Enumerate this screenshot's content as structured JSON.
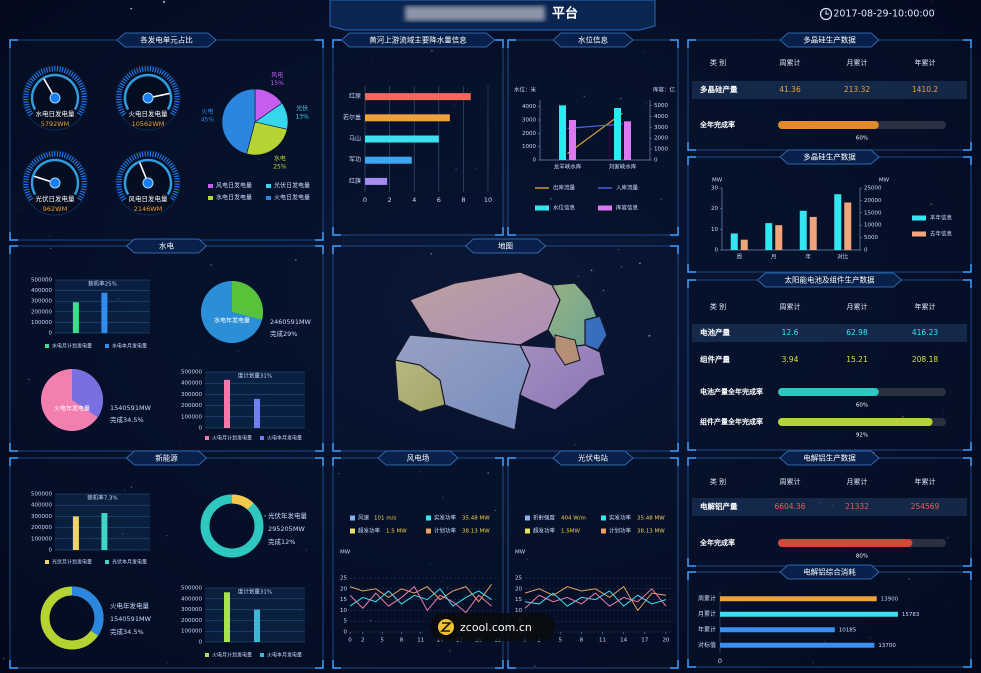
{
  "header": {
    "title": "平台",
    "datetime": "2017-08-29-10:00:00"
  },
  "watermark": "zcool.com.cn",
  "panels": [
    {
      "title": "各发电单元占比",
      "charts": [
        {
          "type": "gauge",
          "label": "水电日发电量",
          "value": "5792WM"
        },
        {
          "type": "gauge",
          "label": "火电日发电量",
          "value": "10562WM"
        },
        {
          "type": "gauge",
          "label": "光伏日发电量",
          "value": "962WM"
        },
        {
          "type": "gauge",
          "label": "风电日发电量",
          "value": "2146WM"
        },
        {
          "type": "pie",
          "labels": [
            "风电",
            "光伏",
            "水电",
            "火电"
          ],
          "values": [
            15,
            13,
            25,
            45
          ],
          "value_labels": [
            "15%",
            "13%",
            "25%",
            "45%"
          ],
          "colors": [
            "#c65cf0",
            "#36d6ee",
            "#b5d434",
            "#2b86e0"
          ],
          "legend": [
            "风电日发电量",
            "光伏日发电量",
            "水电日发电量",
            "火电日发电量"
          ]
        }
      ]
    },
    {
      "title": "水电",
      "charts": [
        {
          "type": "vbar",
          "title": "装机率25%",
          "series": [
            {
              "name": "水电月计划发电量",
              "color": "#3de08a",
              "values": [
                290000
              ]
            },
            {
              "name": "水电本月发电量",
              "color": "#2f8ff0",
              "values": [
                380000
              ]
            }
          ],
          "ylim": [
            0,
            500000
          ],
          "yticks": [
            0,
            100000,
            200000,
            300000,
            400000,
            500000
          ]
        },
        {
          "type": "pie",
          "center_label": "水电年发电量",
          "total": "2460591MW",
          "done_label": "完成29%",
          "done": 29,
          "colors": [
            "#2b8fd8",
            "#58c23a"
          ]
        },
        {
          "type": "pie",
          "center_label": "火电年发电量",
          "total": "1540591MW",
          "done_label": "完成34.5%",
          "done": 34.5,
          "colors": [
            "#f27fb0",
            "#7a6fe0"
          ]
        },
        {
          "type": "vbar",
          "title": "度计划量31%",
          "series": [
            {
              "name": "火电月计划发电量",
              "color": "#f07aa8",
              "values": [
                430000
              ]
            },
            {
              "name": "火电本月发电量",
              "color": "#6f7ff0",
              "values": [
                260000
              ]
            }
          ],
          "ylim": [
            0,
            500000
          ],
          "yticks": [
            0,
            100000,
            200000,
            300000,
            400000,
            500000
          ]
        }
      ]
    },
    {
      "title": "新能源",
      "charts": [
        {
          "type": "vbar",
          "title": "装机率7.3%",
          "series": [
            {
              "name": "光伏月计划发电量",
              "color": "#f2d36b",
              "values": [
                300000
              ]
            },
            {
              "name": "光伏本月发电量",
              "color": "#3fd6c6",
              "values": [
                330000
              ]
            }
          ],
          "ylim": [
            0,
            500000
          ],
          "yticks": [
            0,
            100000,
            200000,
            300000,
            400000,
            500000
          ]
        },
        {
          "type": "donut",
          "center_label": "光伏年发电量",
          "total": "295205MW",
          "done_label": "完成12%",
          "done": 12,
          "colors": [
            "#2fc8c0",
            "#f2c94c"
          ]
        },
        {
          "type": "donut",
          "center_label": "火电年发电量",
          "total": "1540591MW",
          "done_label": "完成34.5%",
          "done": 34.5,
          "colors": [
            "#b5d434",
            "#2b86e0"
          ]
        },
        {
          "type": "vbar",
          "title": "度计划量31%",
          "series": [
            {
              "name": "火电月计划发电量",
              "color": "#a8e05a",
              "values": [
                460000
              ]
            },
            {
              "name": "火电本月发电量",
              "color": "#3fb6d6",
              "values": [
                300000
              ]
            }
          ],
          "ylim": [
            0,
            500000
          ],
          "yticks": [
            0,
            100000,
            200000,
            300000,
            400000,
            500000
          ]
        }
      ]
    },
    {
      "title": "黄河上游流域主要降水量信息",
      "charts": [
        {
          "type": "hbar",
          "categories": [
            "红原",
            "若尔盖",
            "马山",
            "军功",
            "红旗"
          ],
          "values": [
            8.6,
            6.9,
            6.0,
            3.8,
            1.8
          ],
          "colors": [
            "#f06a5a",
            "#f0a03c",
            "#3de0f0",
            "#3aa8f0",
            "#a78bf0"
          ],
          "xlim": [
            0,
            10
          ],
          "xticks": [
            0,
            2,
            4,
            6,
            8,
            10
          ]
        }
      ]
    },
    {
      "title": "水位信息",
      "charts": [
        {
          "type": "combo",
          "ylabel": "水位：米",
          "y2label": "库容：亿",
          "categories": [
            "龙羊峡水库",
            "刘家峡水库"
          ],
          "ylim": [
            0,
            4500
          ],
          "yticks": [
            0,
            1000,
            2000,
            3000,
            4000
          ],
          "y2lim": [
            0,
            5500
          ],
          "y2ticks": [
            0,
            1000,
            2000,
            3000,
            4000,
            5000
          ],
          "series": [
            {
              "name": "出库流量",
              "color": "#d9a040",
              "type": "line",
              "axis": "y2",
              "values": [
                600,
                4300
              ]
            },
            {
              "name": "入库流量",
              "color": "#4f63e8",
              "type": "line",
              "axis": "y2",
              "values": [
                2900,
                3300
              ]
            },
            {
              "name": "水位信息",
              "color": "#34e6f2",
              "values": [
                4100,
                3900
              ]
            },
            {
              "name": "库容信息",
              "color": "#dc78f2",
              "values": [
                3000,
                2900
              ]
            }
          ]
        }
      ]
    },
    {
      "title": "地图"
    },
    {
      "title": "风电场",
      "charts": [
        {
          "type": "line",
          "stats": [
            {
              "label": "风速",
              "value": "101 m/s",
              "color": "#7fb2ff"
            },
            {
              "label": "实发功率",
              "value": "35.48 MW",
              "color": "#34e6f2"
            },
            {
              "label": "超发功率",
              "value": "1.5 MW",
              "color": "#e8e060"
            },
            {
              "label": "计划功率",
              "value": "38.13 MW",
              "color": "#f0a060"
            }
          ],
          "yunit": "MW",
          "x": [
            0,
            2,
            4,
            6,
            8,
            10,
            12,
            14,
            16,
            18,
            20,
            22
          ],
          "xlim": [
            0,
            23
          ],
          "xticks": [
            0,
            2,
            5,
            8,
            11,
            14,
            17,
            20,
            23
          ],
          "ylim": [
            0,
            25
          ],
          "yticks": [
            0,
            5,
            10,
            15,
            20,
            25
          ],
          "series": [
            {
              "color": "#e8a060",
              "values": [
                21,
                19,
                20,
                16,
                20,
                18,
                21,
                15,
                19,
                21,
                14,
                22
              ]
            },
            {
              "color": "#3de0f0",
              "values": [
                12,
                16,
                14,
                19,
                13,
                17,
                15,
                20,
                12,
                16,
                19,
                15
              ]
            },
            {
              "color": "#f07aa8",
              "values": [
                17,
                11,
                18,
                12,
                16,
                21,
                10,
                17,
                14,
                9,
                17,
                12
              ]
            }
          ]
        }
      ]
    },
    {
      "title": "光伏电站",
      "charts": [
        {
          "type": "line",
          "stats": [
            {
              "label": "折射强度",
              "value": "404 W/m",
              "color": "#7fb2ff"
            },
            {
              "label": "实发功率",
              "value": "35.48 MW",
              "color": "#34e6f2"
            },
            {
              "label": "超发功率",
              "value": "1.5MW",
              "color": "#e8e060"
            },
            {
              "label": "计划功率",
              "value": "38.13 MW",
              "color": "#f0a060"
            }
          ],
          "yunit": "MW",
          "x": [
            0,
            2,
            4,
            6,
            8,
            10,
            12,
            14,
            16,
            18,
            20
          ],
          "xlim": [
            0,
            21
          ],
          "xticks": [
            0,
            2,
            5,
            8,
            11,
            14,
            17,
            20
          ],
          "ylim": [
            0,
            25
          ],
          "yticks": [
            0,
            5,
            10,
            15,
            20,
            25
          ],
          "series": [
            {
              "color": "#e8a060",
              "values": [
                18,
                20,
                17,
                21,
                19,
                20,
                16,
                21,
                10,
                18,
                17
              ]
            },
            {
              "color": "#3de0f0",
              "values": [
                14,
                13,
                18,
                12,
                16,
                15,
                19,
                12,
                17,
                13,
                15
              ]
            },
            {
              "color": "#f07aa8",
              "values": [
                11,
                17,
                14,
                16,
                13,
                18,
                12,
                16,
                14,
                20,
                12
              ]
            }
          ]
        }
      ]
    },
    {
      "title": "多晶硅生产数据",
      "charts": [
        {
          "type": "table",
          "headers": [
            "类 别",
            "周累计",
            "月累计",
            "年累计"
          ],
          "rows": [
            {
              "cells": [
                "多晶硅产量",
                "41.36",
                "213.32",
                "1410.2"
              ],
              "color": "#f0a030"
            }
          ]
        },
        {
          "type": "progress",
          "label": "全年完成率",
          "value": 60,
          "value_label": "60%",
          "color": "#e08a2a"
        }
      ]
    },
    {
      "title": "多晶硅生产数据",
      "charts": [
        {
          "type": "combo",
          "ylabel": "MW",
          "y2label": "MW",
          "categories": [
            "周",
            "月",
            "年",
            "对比"
          ],
          "ylim": [
            0,
            30
          ],
          "yticks": [
            0,
            10,
            20,
            30
          ],
          "y2lim": [
            0,
            25000
          ],
          "y2ticks": [
            0,
            5000,
            10000,
            15000,
            20000,
            25000
          ],
          "series": [
            {
              "name": "本年信息",
              "color": "#34e6f2",
              "values": [
                8,
                13,
                19,
                27
              ]
            },
            {
              "name": "去年信息",
              "color": "#f2a47a",
              "values": [
                5,
                12,
                16,
                23
              ]
            }
          ]
        }
      ]
    },
    {
      "title": "太阳能电池及组件生产数据",
      "charts": [
        {
          "type": "table",
          "headers": [
            "类 别",
            "周累计",
            "月累计",
            "年累计"
          ],
          "rows": [
            {
              "cells": [
                "电池产量",
                "12.6",
                "62.98",
                "416.23"
              ],
              "color": "#34e6f2"
            },
            {
              "cells": [
                "组件产量",
                "3.94",
                "15.21",
                "208.18"
              ],
              "color": "#d8e040"
            }
          ]
        },
        {
          "type": "progress",
          "label": "电池产量全年完成率",
          "value": 60,
          "value_label": "60%",
          "color": "#2fc8c0"
        },
        {
          "type": "progress",
          "label": "组件产量全年完成率",
          "value": 92,
          "value_label": "92%",
          "color": "#b5d434"
        }
      ]
    },
    {
      "title": "电解铝生产数据",
      "charts": [
        {
          "type": "table",
          "headers": [
            "类 别",
            "周累计",
            "月累计",
            "年累计"
          ],
          "rows": [
            {
              "cells": [
                "电解铝产量",
                "6604.36",
                "21332",
                "254569"
              ],
              "color": "#f05a4a"
            }
          ]
        },
        {
          "type": "progress",
          "label": "全年完成率",
          "value": 80,
          "value_label": "80%",
          "color": "#d8463a"
        }
      ]
    },
    {
      "title": "电解铝综合消耗",
      "charts": [
        {
          "type": "hbar",
          "categories": [
            "周累计",
            "月累计",
            "年累计",
            "对标值"
          ],
          "values": [
            13900,
            15783,
            10185,
            13700
          ],
          "colors": [
            "#f0a03c",
            "#3de0f0",
            "#3a8ff0",
            "#3a8ff0"
          ],
          "xlim": [
            0,
            22000
          ],
          "xticks": [
            0
          ]
        }
      ]
    }
  ]
}
